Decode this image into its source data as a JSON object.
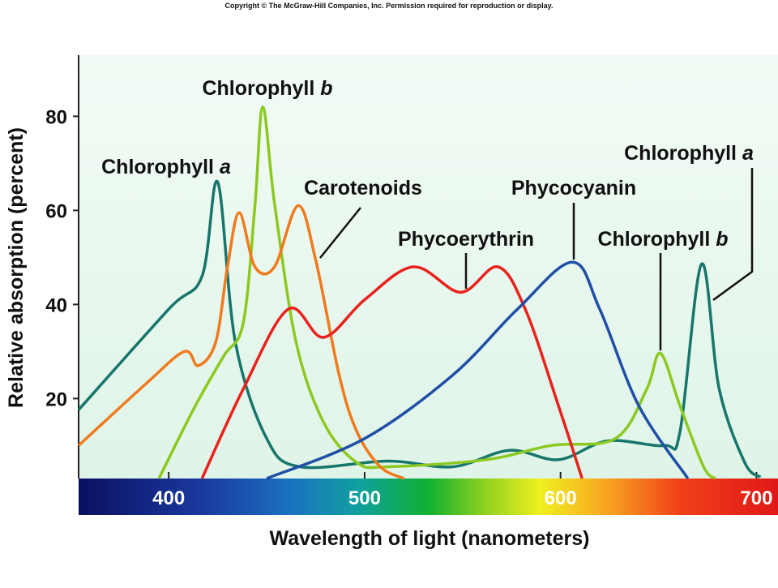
{
  "chart_data": {
    "type": "line",
    "copyright": "Copyright © The McGraw-Hill Companies, Inc. Permission required for reproduction or display.",
    "x_label": "Wavelength of light (nanometers)",
    "y_label": "Relative absorption (percent)",
    "xlim": [
      354,
      711
    ],
    "ylim": [
      3,
      93
    ],
    "xticks": [
      400,
      500,
      600,
      700
    ],
    "yticks": [
      20,
      40,
      60,
      80
    ],
    "series": [
      {
        "name": "Chlorophyll a",
        "color": "#17766b",
        "x": [
          354,
          400,
          417,
          425,
          434,
          450,
          467,
          512,
          545,
          574,
          599,
          624,
          653,
          661,
          672,
          681,
          694,
          702
        ],
        "values": [
          17.6,
          39,
          46,
          66,
          32,
          11.5,
          5.5,
          6.7,
          5.5,
          9,
          7,
          11,
          10,
          13,
          48.6,
          22,
          6.4,
          3.3
        ]
      },
      {
        "name": "Chlorophyll b",
        "color": "#8cc920",
        "x": [
          395,
          413,
          428,
          438,
          444,
          448,
          454,
          465,
          479,
          496,
          512,
          562,
          595,
          628,
          644,
          651,
          661,
          673,
          679
        ],
        "values": [
          3,
          18,
          29,
          36,
          61,
          82,
          61.5,
          32,
          15,
          6.4,
          5.5,
          7,
          10,
          11.5,
          22,
          29.6,
          18.4,
          5.5,
          3
        ]
      },
      {
        "name": "Carotenoids",
        "color": "#f07a1c",
        "x": [
          354,
          388,
          408,
          415,
          424,
          430,
          436,
          444,
          454,
          466,
          475,
          487,
          496,
          508,
          520
        ],
        "values": [
          10,
          23,
          30,
          27,
          32,
          48,
          59.5,
          48,
          48,
          61,
          49.5,
          25,
          13,
          5.5,
          3
        ]
      },
      {
        "name": "Phycoerythrin",
        "color": "#e8221c",
        "x": [
          417,
          438,
          461,
          479,
          500,
          525,
          549,
          568,
          582,
          599,
          611
        ],
        "values": [
          3,
          22,
          39,
          33,
          41,
          48,
          42.6,
          48,
          39,
          18.4,
          3
        ]
      },
      {
        "name": "Phycocyanin",
        "color": "#1f4fa6",
        "x": [
          450,
          500,
          545,
          578,
          606,
          620,
          640,
          665
        ],
        "values": [
          3,
          11.5,
          25,
          39,
          49,
          39,
          18.4,
          3
        ]
      }
    ]
  }
}
